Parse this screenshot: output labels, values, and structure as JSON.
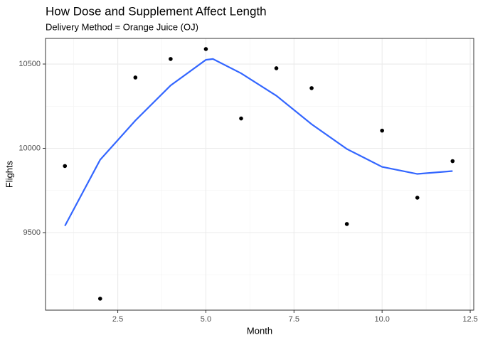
{
  "chart_data": {
    "type": "scatter",
    "title": "How Dose and Supplement Affect Length",
    "subtitle": "Delivery Method = Orange Juice (OJ)",
    "x_label": "Month",
    "y_label": "Flights",
    "points": {
      "color": "#000000",
      "x": [
        1,
        2,
        3,
        4,
        5,
        6,
        7,
        8,
        9,
        10,
        11,
        12
      ],
      "y": [
        9895,
        9108,
        10420,
        10530,
        10589,
        10177,
        10475,
        10357,
        9551,
        10105,
        9707,
        9924
      ]
    },
    "smooth": {
      "color": "#3366ff",
      "x": [
        1,
        2,
        3,
        4,
        5,
        5.2,
        6,
        7,
        8,
        9,
        10,
        11,
        12
      ],
      "y": [
        9540,
        9932,
        10165,
        10373,
        10525,
        10530,
        10445,
        10312,
        10143,
        9996,
        9890,
        9848,
        9865
      ]
    },
    "xlim": [
      0.45,
      12.6
    ],
    "ylim": [
      9040,
      10652
    ],
    "xticks": [
      2.5,
      {
        "value": 5,
        "label": "5.0"
      },
      7.5,
      {
        "value": 10,
        "label": "10.0"
      },
      12.5
    ],
    "yticks": [
      9500,
      10000,
      10500
    ],
    "minor_xticks": [
      1.25,
      3.75,
      6.25,
      8.75,
      11.25
    ],
    "minor_yticks": [
      9250,
      9750,
      10250
    ],
    "grid": true
  }
}
